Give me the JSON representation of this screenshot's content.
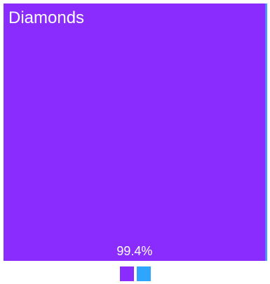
{
  "chart_data": {
    "type": "treemap",
    "items": [
      {
        "label": "Diamonds",
        "value": 99.4,
        "value_label": "99.4%",
        "color": "#8b2cff"
      },
      {
        "label": "",
        "value": 0.6,
        "value_label": "",
        "color": "#2ea6ff"
      }
    ],
    "legend": {
      "placement": "bottom-center",
      "colors": [
        "#8b2cff",
        "#2ea6ff"
      ]
    }
  }
}
